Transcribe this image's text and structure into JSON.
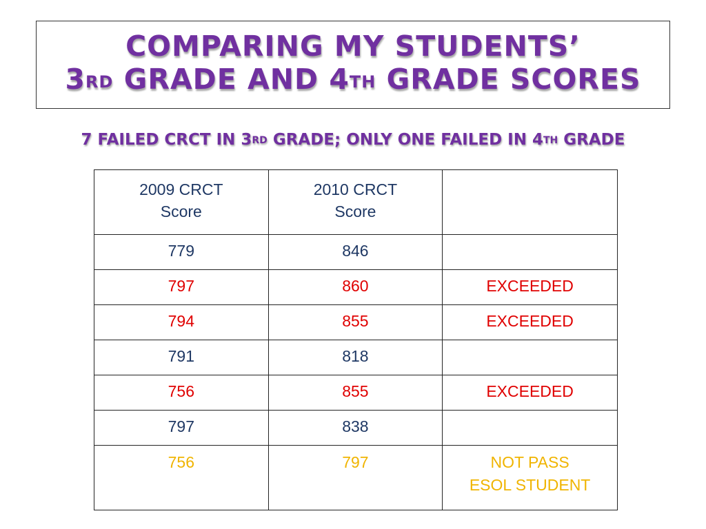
{
  "slide": {
    "title_line1": "Comparing my students’",
    "title_line2": {
      "part1": "3",
      "sup1": "rd",
      "part2": " grade and 4",
      "sup2": "th",
      "part3": " grade scores"
    },
    "subtitle": {
      "part1": "7 failed CRCT in 3",
      "sup1": "rd",
      "part2": " grade; only one failed in 4",
      "sup2": "th",
      "part3": " grade"
    }
  },
  "colors": {
    "title": "#7030a0",
    "default_text": "#1f3864",
    "exceeded": "#e00000",
    "not_pass": "#f0b400"
  },
  "table": {
    "headers": [
      {
        "line1": "2009 CRCT",
        "line2": "Score"
      },
      {
        "line1": "2010 CRCT",
        "line2": "Score"
      },
      {
        "line1": "",
        "line2": ""
      }
    ],
    "rows": [
      {
        "score_2009": "779",
        "score_2010": "846",
        "status_line1": "",
        "status_line2": "",
        "style": "blue"
      },
      {
        "score_2009": "797",
        "score_2010": "860",
        "status_line1": "EXCEEDED",
        "status_line2": "",
        "style": "red"
      },
      {
        "score_2009": "794",
        "score_2010": "855",
        "status_line1": "EXCEEDED",
        "status_line2": "",
        "style": "red"
      },
      {
        "score_2009": "791",
        "score_2010": "818",
        "status_line1": "",
        "status_line2": "",
        "style": "blue"
      },
      {
        "score_2009": "756",
        "score_2010": "855",
        "status_line1": "EXCEEDED",
        "status_line2": "",
        "style": "red"
      },
      {
        "score_2009": "797",
        "score_2010": "838",
        "status_line1": "",
        "status_line2": "",
        "style": "blue"
      },
      {
        "score_2009": "756",
        "score_2010": "797",
        "status_line1": "NOT PASS",
        "status_line2": "ESOL STUDENT",
        "style": "yellow"
      }
    ]
  }
}
